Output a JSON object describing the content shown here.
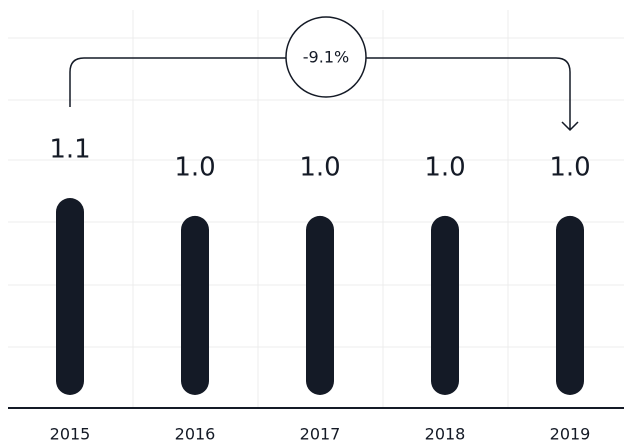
{
  "chart_data": {
    "type": "bar",
    "categories": [
      "2015",
      "2016",
      "2017",
      "2018",
      "2019"
    ],
    "values": [
      1.1,
      1.0,
      1.0,
      1.0,
      1.0
    ],
    "value_labels": [
      "1.1",
      "1.0",
      "1.0",
      "1.0",
      "1.0"
    ],
    "color": "#141a26",
    "annotation": "-9.1%"
  }
}
